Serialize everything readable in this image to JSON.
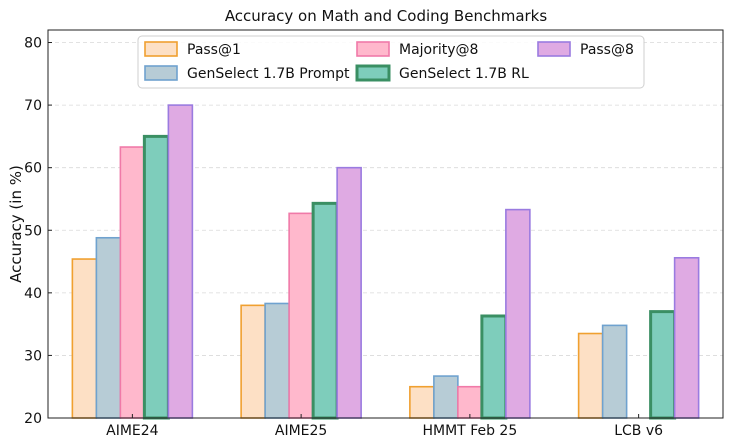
{
  "chart_data": {
    "type": "bar",
    "title": "Accuracy on Math and Coding Benchmarks",
    "xlabel": "",
    "ylabel": "Accuracy (in %)",
    "ylim": [
      20,
      82
    ],
    "yticks": [
      20,
      30,
      40,
      50,
      60,
      70,
      80
    ],
    "grid": true,
    "legend_position": "top-center",
    "categories": [
      "AIME24",
      "AIME25",
      "HMMT Feb 25",
      "LCB v6"
    ],
    "series": [
      {
        "name": "Pass@1",
        "values": [
          45.4,
          38.0,
          25.0,
          33.5
        ],
        "fill": "#fde0c5",
        "stroke": "#f0a030",
        "stroke_weight": "normal"
      },
      {
        "name": "GenSelect 1.7B Prompt",
        "values": [
          48.8,
          38.3,
          26.7,
          34.8
        ],
        "fill": "#b7ccd6",
        "stroke": "#6fa2cf",
        "stroke_weight": "normal"
      },
      {
        "name": "Majority@8",
        "values": [
          63.3,
          52.7,
          25.0,
          null
        ],
        "fill": "#ffb8cc",
        "stroke": "#f07aa8",
        "stroke_weight": "normal"
      },
      {
        "name": "GenSelect 1.7B RL",
        "values": [
          65.0,
          54.3,
          36.3,
          37.0
        ],
        "fill": "#7ecdbb",
        "stroke": "#3a8f63",
        "stroke_weight": "bold"
      },
      {
        "name": "Pass@8",
        "values": [
          70.0,
          60.0,
          53.3,
          45.6
        ],
        "fill": "#dfaae3",
        "stroke": "#9a7be0",
        "stroke_weight": "normal"
      }
    ]
  }
}
